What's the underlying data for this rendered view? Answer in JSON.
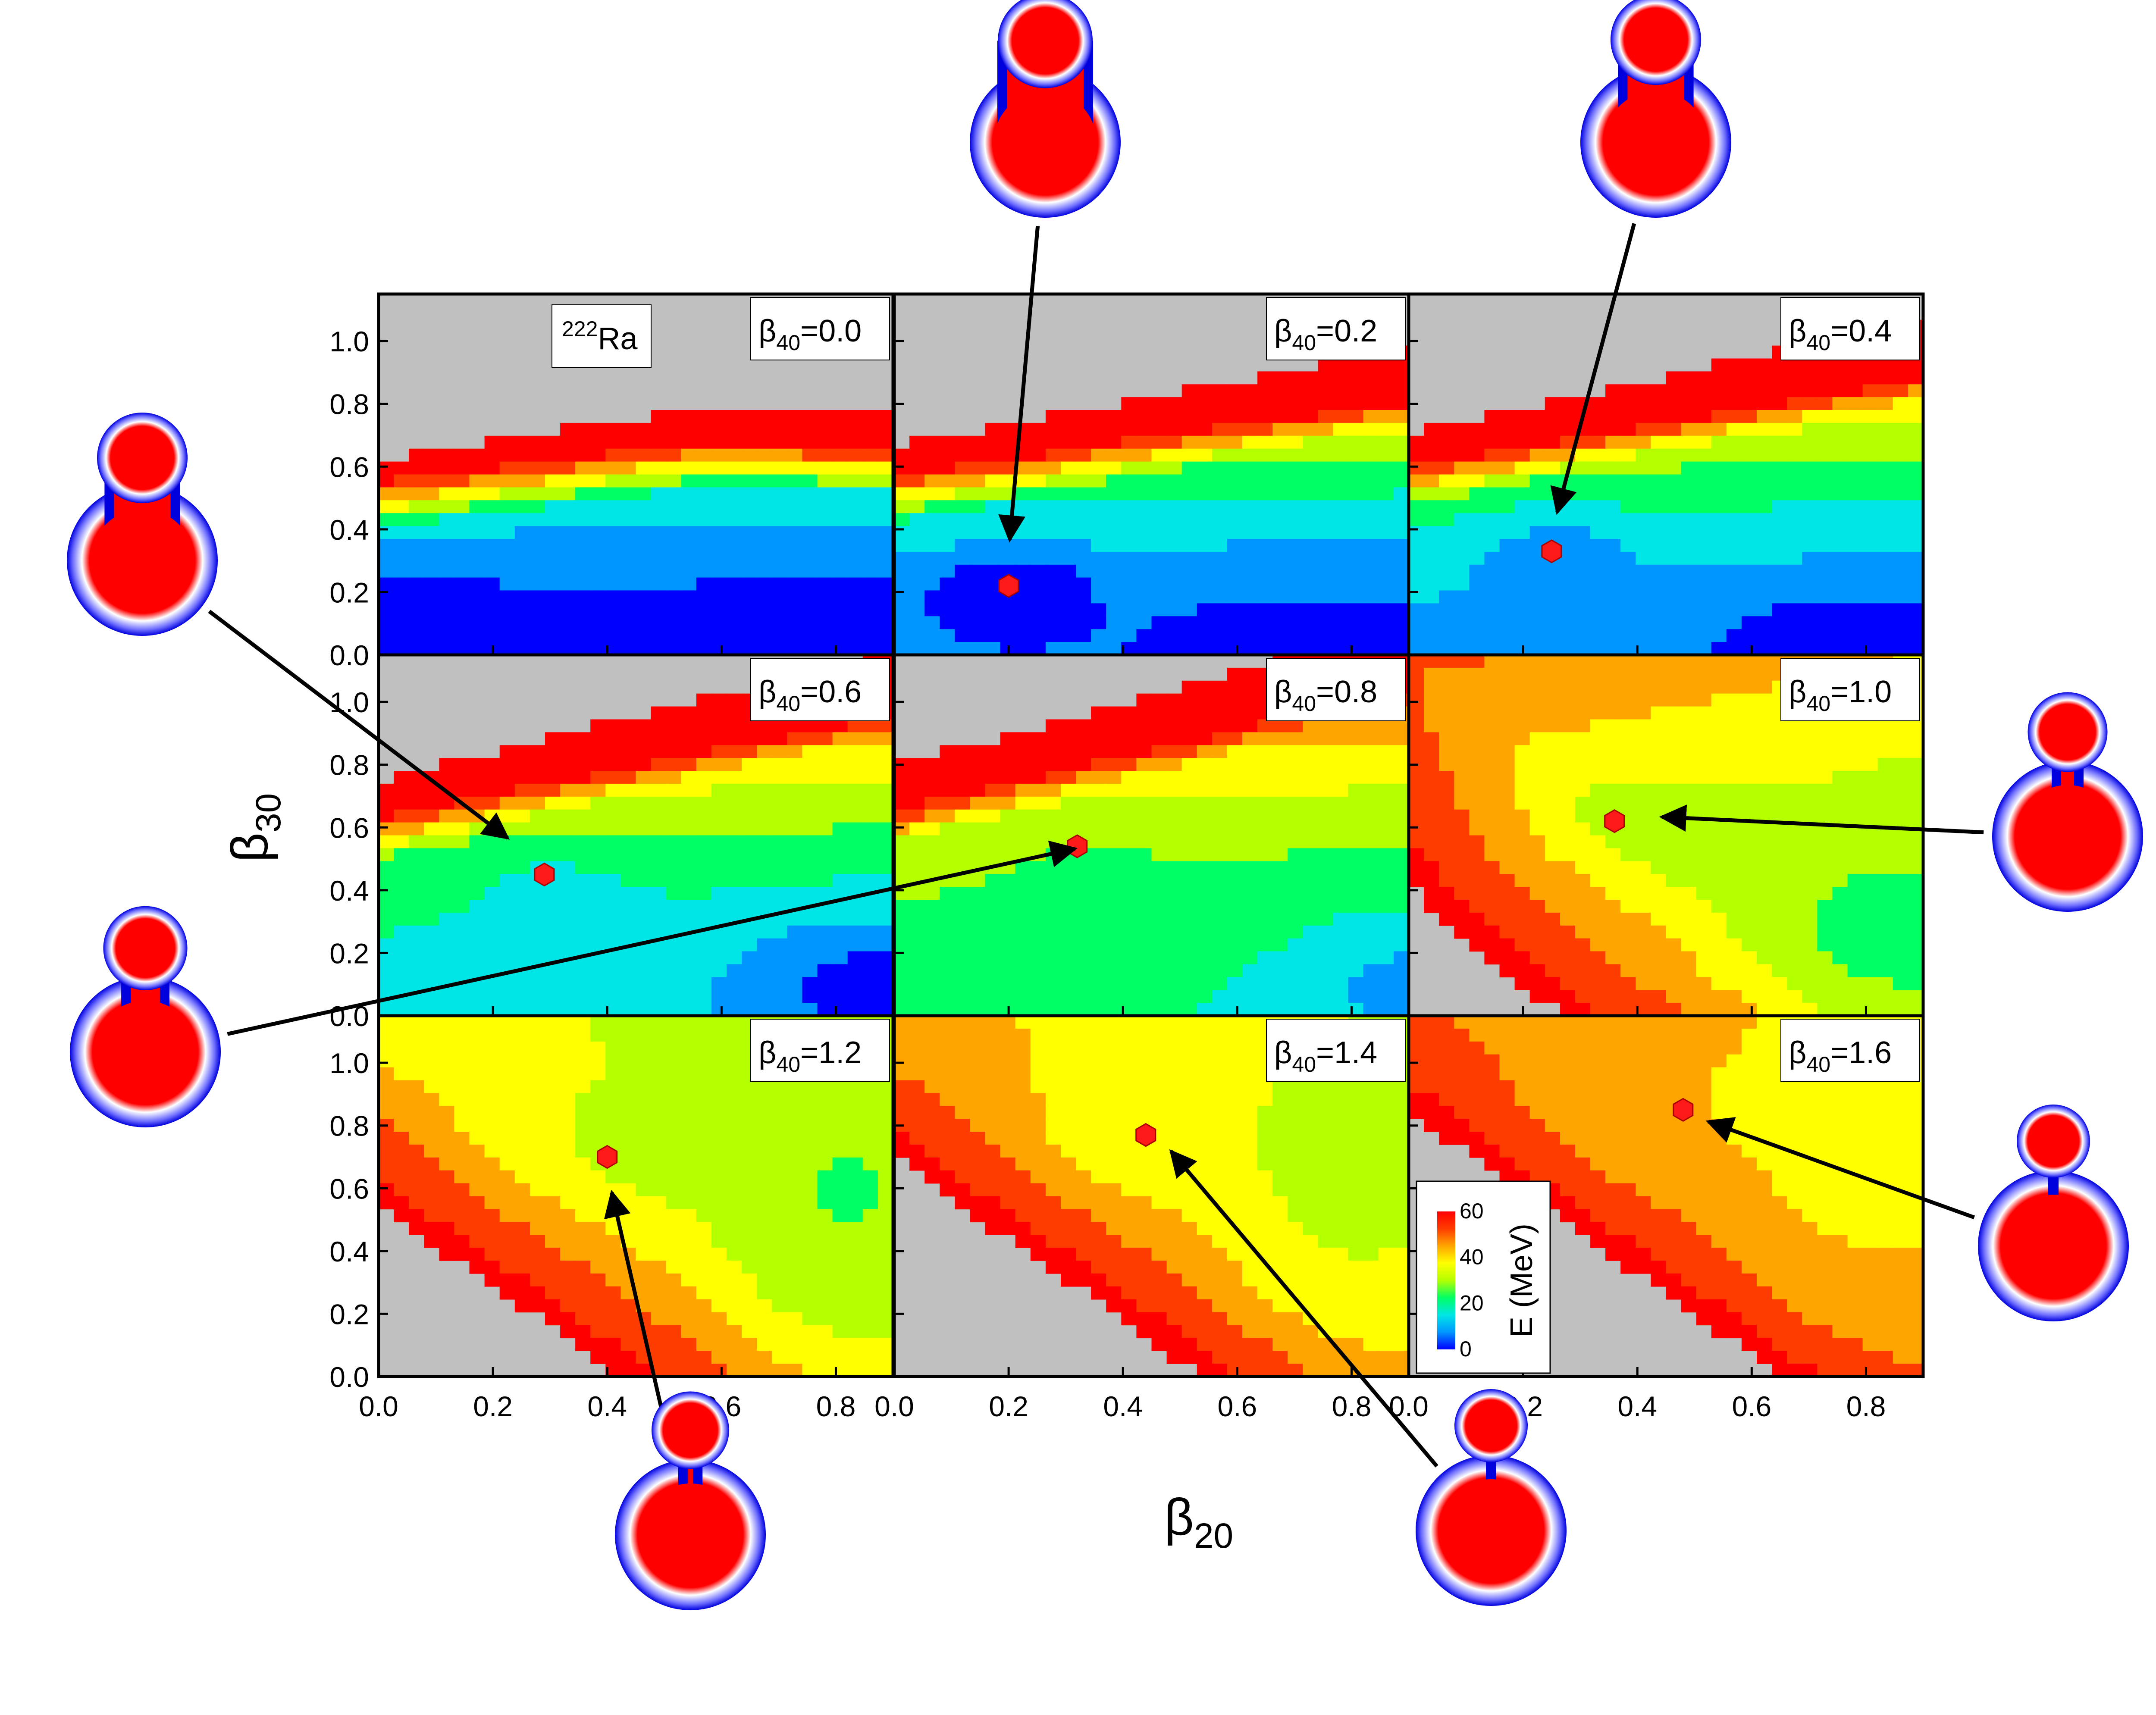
{
  "chart_data": {
    "type": "heatmap",
    "nucleus": {
      "mass": "222",
      "symbol": "Ra"
    },
    "xlabel": {
      "main": "β",
      "sub": "20"
    },
    "ylabel": {
      "main": "β",
      "sub": "30"
    },
    "x_ticks": {
      "col0": [
        "0.0",
        "0.2",
        "0.4",
        "0.6",
        "0.8"
      ],
      "col1": [
        "0.0",
        "0.2",
        "0.4",
        "0.6",
        "0.8"
      ],
      "col2": [
        "0.0",
        "0.2",
        "0.4",
        "0.6",
        "0.8"
      ]
    },
    "y_ticks": [
      "0.0",
      "0.2",
      "0.4",
      "0.6",
      "0.8",
      "1.0"
    ],
    "xlim": [
      0.0,
      0.9
    ],
    "ylim": [
      0.0,
      1.15
    ],
    "colorbar": {
      "label": "E (MeV)",
      "min": 0,
      "max": 60,
      "ticks": [
        "0",
        "20",
        "40",
        "60"
      ],
      "colors": [
        "#0000ff",
        "#0096ff",
        "#00e6e6",
        "#00ff64",
        "#b4ff00",
        "#ffff00",
        "#ffa500",
        "#ff3c00",
        "#ff0000"
      ],
      "out_of_range_color": "#c0c0c0"
    },
    "panels": [
      {
        "beta40_label": "β",
        "beta40_sub": "40",
        "beta40_value": "=0.0",
        "minimum": null
      },
      {
        "beta40_label": "β",
        "beta40_sub": "40",
        "beta40_value": "=0.2",
        "minimum": {
          "beta20": 0.2,
          "beta30": 0.22
        }
      },
      {
        "beta40_label": "β",
        "beta40_sub": "40",
        "beta40_value": "=0.4",
        "minimum": {
          "beta20": 0.25,
          "beta30": 0.33
        }
      },
      {
        "beta40_label": "β",
        "beta40_sub": "40",
        "beta40_value": "=0.6",
        "minimum": {
          "beta20": 0.29,
          "beta30": 0.45
        }
      },
      {
        "beta40_label": "β",
        "beta40_sub": "40",
        "beta40_value": "=0.8",
        "minimum": {
          "beta20": 0.32,
          "beta30": 0.54
        }
      },
      {
        "beta40_label": "β",
        "beta40_sub": "40",
        "beta40_value": "=1.0",
        "minimum": {
          "beta20": 0.36,
          "beta30": 0.62
        }
      },
      {
        "beta40_label": "β",
        "beta40_sub": "40",
        "beta40_value": "=1.2",
        "minimum": {
          "beta20": 0.4,
          "beta30": 0.7
        }
      },
      {
        "beta40_label": "β",
        "beta40_sub": "40",
        "beta40_value": "=1.4",
        "minimum": {
          "beta20": 0.44,
          "beta30": 0.77
        }
      },
      {
        "beta40_label": "β",
        "beta40_sub": "40",
        "beta40_value": "=1.6",
        "minimum": {
          "beta20": 0.48,
          "beta30": 0.85
        }
      }
    ],
    "marker_color": "#ff1a1a",
    "shape_colors": {
      "core": "#ff0000",
      "rim": "#ffffff",
      "edge": "#0000dd"
    }
  }
}
